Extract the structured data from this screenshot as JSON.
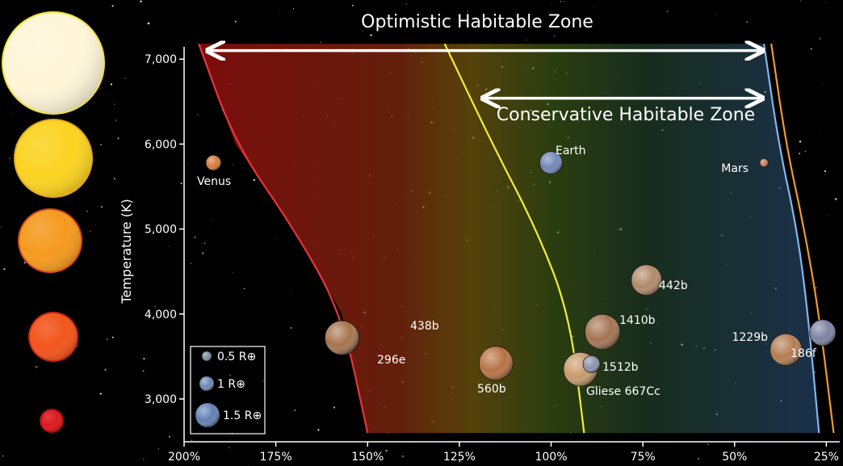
{
  "chart_data": {
    "type": "scatter",
    "title": "",
    "xlabel": "",
    "ylabel": "Temperature (K)",
    "x_axis": {
      "reversed": true,
      "unit": "%",
      "range": [
        200,
        22
      ],
      "ticks": [
        200,
        175,
        150,
        125,
        100,
        75,
        50,
        25
      ],
      "tick_labels": [
        "200%",
        "175%",
        "150%",
        "125%",
        "100%",
        "75%",
        "50%",
        "25%"
      ]
    },
    "y_axis": {
      "range": [
        2500,
        7200
      ],
      "ticks": [
        3000,
        4000,
        5000,
        6000,
        7000
      ],
      "tick_labels": [
        "3,000",
        "4,000",
        "5,000",
        "6,000",
        "7,000"
      ]
    },
    "zones": [
      {
        "name": "Optimistic Habitable Zone",
        "from": 194,
        "to": 42,
        "arrow_y": 7100
      },
      {
        "name": "Conservative Habitable Zone",
        "from": 119,
        "to": 42,
        "arrow_y": 6540
      }
    ],
    "boundary_lines": [
      {
        "color": "#e8343a",
        "points": [
          [
            196,
            7180
          ],
          [
            186,
            6000
          ],
          [
            170,
            5000
          ],
          [
            157,
            4000
          ],
          [
            150,
            2600
          ]
        ]
      },
      {
        "color": "#f2ee3a",
        "points": [
          [
            129,
            7180
          ],
          [
            116,
            6000
          ],
          [
            104,
            5000
          ],
          [
            95,
            4000
          ],
          [
            91,
            2600
          ]
        ]
      },
      {
        "color": "#7fb8ee",
        "points": [
          [
            42,
            7180
          ],
          [
            38,
            6000
          ],
          [
            33,
            5000
          ],
          [
            30,
            4000
          ],
          [
            27,
            2600
          ]
        ]
      },
      {
        "color": "#ef9a2e",
        "points": [
          [
            40,
            7180
          ],
          [
            36,
            6000
          ],
          [
            31,
            5000
          ],
          [
            27,
            4000
          ],
          [
            23,
            2600
          ]
        ]
      }
    ],
    "series": [
      {
        "name": "Venus",
        "x": 192,
        "y": 5780,
        "radius": 0.95,
        "color": "#d77a3a"
      },
      {
        "name": "Earth",
        "x": 100,
        "y": 5780,
        "radius": 1.0,
        "color": "#6f86b6"
      },
      {
        "name": "Mars",
        "x": 42,
        "y": 5780,
        "radius": 0.53,
        "color": "#c9805a"
      },
      {
        "name": "438b",
        "x": 158,
        "y": 3750,
        "radius": 1.12,
        "color": "#b58a62"
      },
      {
        "name": "296e",
        "x": 157,
        "y": 3720,
        "radius": 1.5,
        "color": "#a5724c"
      },
      {
        "name": "560b",
        "x": 115,
        "y": 3420,
        "radius": 1.5,
        "color": "#b7703f"
      },
      {
        "name": "Gliese 667Cc",
        "x": 92,
        "y": 3350,
        "radius": 1.5,
        "color": "#c79a6c"
      },
      {
        "name": "1512b",
        "x": 89,
        "y": 3410,
        "radius": 0.75,
        "color": "#8c91ab"
      },
      {
        "name": "1410b",
        "x": 86,
        "y": 3790,
        "radius": 1.55,
        "color": "#a37350"
      },
      {
        "name": "442b",
        "x": 74,
        "y": 4400,
        "radius": 1.35,
        "color": "#b08866"
      },
      {
        "name": "1229b",
        "x": 36,
        "y": 3580,
        "radius": 1.4,
        "color": "#b47c52"
      },
      {
        "name": "186f",
        "x": 26,
        "y": 3780,
        "radius": 1.15,
        "color": "#7d82a3"
      }
    ],
    "legend": {
      "placement": "bottom-left",
      "items": [
        {
          "label": "0.5 R⊕",
          "radius": 0.5,
          "color": "#7d8aa6"
        },
        {
          "label": "1 R⊕",
          "radius": 1.0,
          "color": "#6f86b6"
        },
        {
          "label": "1.5 R⊕",
          "radius": 1.5,
          "color": "#5f7fb4"
        }
      ]
    },
    "stars": [
      {
        "temperature": 7000,
        "color": "#fff6d8",
        "edge": "#f2e23a"
      },
      {
        "temperature": 6000,
        "color": "#fbd321",
        "edge": "#e7a91a"
      },
      {
        "temperature": 5000,
        "color": "#f59a1f",
        "edge": "#dd4a16"
      },
      {
        "temperature": 4000,
        "color": "#f2561c",
        "edge": "#c82513"
      },
      {
        "temperature": 3000,
        "color": "#dc1a1f",
        "edge": "#a41013"
      }
    ],
    "grid": false
  }
}
